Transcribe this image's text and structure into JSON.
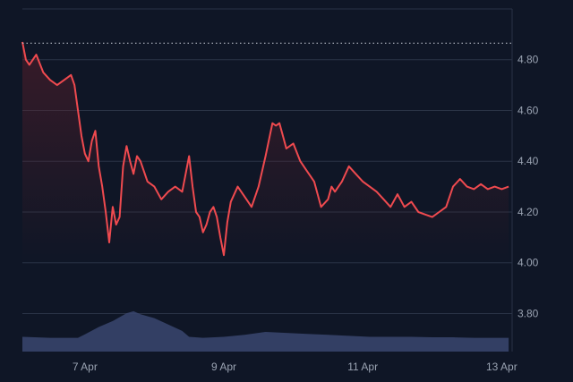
{
  "chart_data": {
    "type": "line",
    "title": "",
    "xlabel": "",
    "ylabel": "",
    "y_axis_side": "right",
    "grid": true,
    "ylim": [
      3.65,
      5.0
    ],
    "xlim": [
      6.1,
      13.15
    ],
    "x_ticks": [
      {
        "value": 7,
        "label": "7 Apr"
      },
      {
        "value": 9,
        "label": "9 Apr"
      },
      {
        "value": 11,
        "label": "11 Apr"
      },
      {
        "value": 13,
        "label": "13 Apr"
      }
    ],
    "y_ticks": [
      {
        "value": 4.8,
        "label": "4.80"
      },
      {
        "value": 4.6,
        "label": "4.60"
      },
      {
        "value": 4.4,
        "label": "4.40"
      },
      {
        "value": 4.2,
        "label": "4.20"
      },
      {
        "value": 4.0,
        "label": "4.00"
      },
      {
        "value": 3.8,
        "label": "3.80"
      }
    ],
    "reference_line": {
      "value": 4.865,
      "style": "dotted"
    },
    "colors": {
      "background": "#0f1626",
      "line": "#ef4a4f",
      "area_top": "#5a1f2a",
      "volume": "#3a4670",
      "grid": "#2a3346",
      "reference": "#c9ced8",
      "tick_text": "#9aa3b2"
    },
    "series": [
      {
        "kind": "price",
        "x": [
          6.1,
          6.15,
          6.2,
          6.3,
          6.4,
          6.5,
          6.6,
          6.7,
          6.8,
          6.85,
          6.9,
          6.95,
          7.0,
          7.05,
          7.1,
          7.15,
          7.2,
          7.25,
          7.3,
          7.35,
          7.4,
          7.45,
          7.5,
          7.55,
          7.6,
          7.65,
          7.7,
          7.75,
          7.8,
          7.9,
          8.0,
          8.1,
          8.2,
          8.3,
          8.4,
          8.5,
          8.55,
          8.6,
          8.65,
          8.7,
          8.75,
          8.8,
          8.85,
          8.9,
          8.95,
          9.0,
          9.05,
          9.1,
          9.2,
          9.3,
          9.4,
          9.5,
          9.6,
          9.7,
          9.75,
          9.8,
          9.85,
          9.9,
          10.0,
          10.1,
          10.2,
          10.3,
          10.4,
          10.5,
          10.55,
          10.6,
          10.7,
          10.8,
          10.9,
          11.0,
          11.1,
          11.2,
          11.3,
          11.4,
          11.5,
          11.6,
          11.7,
          11.8,
          11.9,
          12.0,
          12.1,
          12.2,
          12.3,
          12.4,
          12.5,
          12.6,
          12.7,
          12.8,
          12.9,
          13.0,
          13.1
        ],
        "y": [
          4.87,
          4.8,
          4.78,
          4.82,
          4.75,
          4.72,
          4.7,
          4.72,
          4.74,
          4.7,
          4.6,
          4.5,
          4.43,
          4.4,
          4.48,
          4.52,
          4.38,
          4.3,
          4.2,
          4.08,
          4.22,
          4.15,
          4.18,
          4.38,
          4.46,
          4.4,
          4.35,
          4.42,
          4.4,
          4.32,
          4.3,
          4.25,
          4.28,
          4.3,
          4.28,
          4.42,
          4.3,
          4.2,
          4.18,
          4.12,
          4.15,
          4.2,
          4.22,
          4.18,
          4.1,
          4.03,
          4.16,
          4.24,
          4.3,
          4.26,
          4.22,
          4.3,
          4.42,
          4.55,
          4.54,
          4.55,
          4.5,
          4.45,
          4.47,
          4.4,
          4.36,
          4.32,
          4.22,
          4.25,
          4.3,
          4.28,
          4.32,
          4.38,
          4.35,
          4.32,
          4.3,
          4.28,
          4.25,
          4.22,
          4.27,
          4.22,
          4.24,
          4.2,
          4.19,
          4.18,
          4.2,
          4.22,
          4.3,
          4.33,
          4.3,
          4.29,
          4.31,
          4.29,
          4.3,
          4.29,
          4.3
        ]
      },
      {
        "kind": "volume",
        "x": [
          6.1,
          6.5,
          6.9,
          7.0,
          7.2,
          7.4,
          7.6,
          7.7,
          7.8,
          8.0,
          8.2,
          8.4,
          8.5,
          8.7,
          9.0,
          9.3,
          9.6,
          9.9,
          10.2,
          10.5,
          10.8,
          11.1,
          11.4,
          11.7,
          12.0,
          12.3,
          12.6,
          12.9,
          13.1
        ],
        "y": [
          0.3,
          0.28,
          0.28,
          0.35,
          0.5,
          0.62,
          0.78,
          0.82,
          0.76,
          0.68,
          0.55,
          0.42,
          0.3,
          0.28,
          0.3,
          0.34,
          0.4,
          0.38,
          0.36,
          0.34,
          0.32,
          0.3,
          0.3,
          0.3,
          0.29,
          0.29,
          0.28,
          0.28,
          0.28
        ]
      }
    ]
  }
}
